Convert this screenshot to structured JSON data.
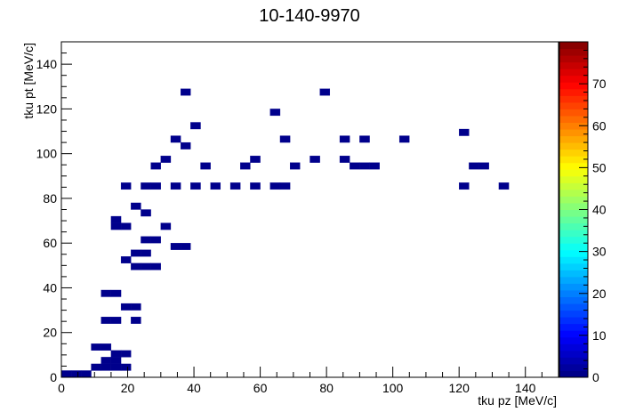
{
  "chart_data": {
    "type": "heatmap",
    "title": "10-140-9970",
    "xlabel": "tku pz [MeV/c]",
    "ylabel": "tku pt [MeV/c]",
    "xlim": [
      0,
      150
    ],
    "ylim": [
      0,
      150
    ],
    "zlim": [
      0,
      80
    ],
    "x_ticks": [
      0,
      20,
      40,
      60,
      80,
      100,
      120,
      140
    ],
    "y_ticks": [
      0,
      20,
      40,
      60,
      80,
      100,
      120,
      140
    ],
    "z_ticks": [
      0,
      10,
      20,
      30,
      40,
      50,
      60,
      70
    ],
    "bin_width_x": 3,
    "bin_width_y": 3,
    "colormap": [
      "#00007f",
      "#0000ff",
      "#007fff",
      "#00ffff",
      "#7fff7f",
      "#ffff00",
      "#ff7f00",
      "#ff0000",
      "#7f0000"
    ],
    "bins": [
      [
        36,
        126,
        1
      ],
      [
        78,
        126,
        1
      ],
      [
        63,
        117,
        1
      ],
      [
        39,
        111,
        1
      ],
      [
        120,
        108,
        1
      ],
      [
        33,
        105,
        1
      ],
      [
        66,
        105,
        1
      ],
      [
        84,
        105,
        1
      ],
      [
        90,
        105,
        1
      ],
      [
        102,
        105,
        1
      ],
      [
        36,
        102,
        1
      ],
      [
        30,
        96,
        1
      ],
      [
        57,
        96,
        1
      ],
      [
        75,
        96,
        1
      ],
      [
        84,
        96,
        1
      ],
      [
        87,
        93,
        1
      ],
      [
        90,
        93,
        1
      ],
      [
        93,
        93,
        1
      ],
      [
        27,
        93,
        1
      ],
      [
        42,
        93,
        1
      ],
      [
        54,
        93,
        1
      ],
      [
        69,
        93,
        1
      ],
      [
        123,
        93,
        1
      ],
      [
        126,
        93,
        1
      ],
      [
        18,
        84,
        1
      ],
      [
        24,
        84,
        1
      ],
      [
        27,
        84,
        1
      ],
      [
        33,
        84,
        1
      ],
      [
        39,
        84,
        1
      ],
      [
        45,
        84,
        1
      ],
      [
        51,
        84,
        1
      ],
      [
        57,
        84,
        1
      ],
      [
        63,
        84,
        1
      ],
      [
        66,
        84,
        1
      ],
      [
        120,
        84,
        1
      ],
      [
        132,
        84,
        1
      ],
      [
        21,
        75,
        1
      ],
      [
        24,
        72,
        1
      ],
      [
        15,
        69,
        1
      ],
      [
        15,
        66,
        1
      ],
      [
        18,
        66,
        1
      ],
      [
        30,
        66,
        1
      ],
      [
        24,
        60,
        1
      ],
      [
        27,
        60,
        1
      ],
      [
        33,
        57,
        1
      ],
      [
        36,
        57,
        1
      ],
      [
        21,
        54,
        1
      ],
      [
        24,
        54,
        1
      ],
      [
        18,
        51,
        1
      ],
      [
        21,
        48,
        1
      ],
      [
        24,
        48,
        1
      ],
      [
        27,
        48,
        1
      ],
      [
        12,
        36,
        1
      ],
      [
        15,
        36,
        1
      ],
      [
        18,
        30,
        1
      ],
      [
        21,
        30,
        1
      ],
      [
        12,
        24,
        1
      ],
      [
        15,
        24,
        1
      ],
      [
        21,
        24,
        1
      ],
      [
        9,
        12,
        1
      ],
      [
        12,
        12,
        1
      ],
      [
        15,
        9,
        1
      ],
      [
        18,
        9,
        1
      ],
      [
        12,
        6,
        1
      ],
      [
        15,
        6,
        1
      ],
      [
        9,
        3,
        1
      ],
      [
        12,
        3,
        1
      ],
      [
        15,
        3,
        1
      ],
      [
        18,
        3,
        1
      ],
      [
        6,
        0,
        1
      ],
      [
        3,
        0,
        1
      ],
      [
        0,
        0,
        1
      ]
    ]
  }
}
